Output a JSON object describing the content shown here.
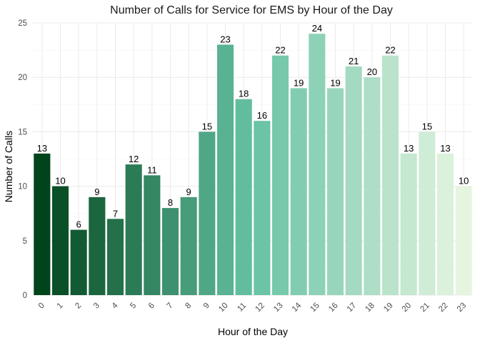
{
  "chart_data": {
    "type": "bar",
    "title": "Number of Calls for Service for EMS by Hour of the Day",
    "xlabel": "Hour of the Day",
    "ylabel": "Number of Calls",
    "categories": [
      "0",
      "1",
      "2",
      "3",
      "4",
      "5",
      "6",
      "7",
      "8",
      "9",
      "10",
      "11",
      "12",
      "13",
      "14",
      "15",
      "16",
      "17",
      "18",
      "19",
      "20",
      "21",
      "22",
      "23"
    ],
    "values": [
      13,
      10,
      6,
      9,
      7,
      12,
      11,
      8,
      9,
      15,
      23,
      18,
      16,
      22,
      19,
      24,
      19,
      21,
      20,
      22,
      13,
      15,
      13,
      10
    ],
    "ylim": [
      0,
      25
    ],
    "yticks": [
      0,
      5,
      10,
      15,
      20,
      25
    ],
    "grid": true,
    "legend": "none",
    "color_scale": {
      "start": "#00441b",
      "mid": "#66c2a4",
      "end": "#e5f5e0"
    }
  }
}
